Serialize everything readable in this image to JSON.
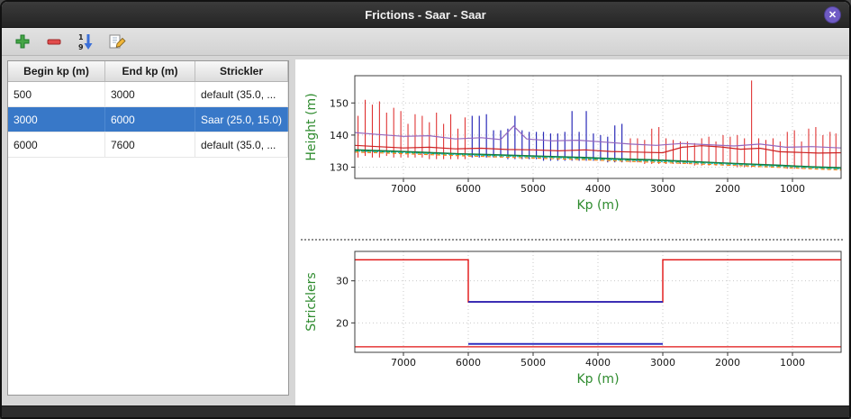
{
  "window": {
    "title": "Frictions - Saar - Saar",
    "close_glyph": "✕"
  },
  "toolbar": {
    "sort_top": "1",
    "sort_bottom": "9"
  },
  "table": {
    "columns": [
      "Begin kp (m)",
      "End kp (m)",
      "Strickler"
    ],
    "rows": [
      {
        "begin": "500",
        "end": "3000",
        "strickler": "default (35.0, ...",
        "selected": false
      },
      {
        "begin": "3000",
        "end": "6000",
        "strickler": "Saar (25.0, 15.0)",
        "selected": true
      },
      {
        "begin": "6000",
        "end": "7600",
        "strickler": "default (35.0, ...",
        "selected": false
      }
    ]
  },
  "chart_data": [
    {
      "type": "line",
      "title": "",
      "xlabel": "Kp (m)",
      "ylabel": "Height (m)",
      "xlim": [
        7750,
        250
      ],
      "ylim": [
        126.5,
        158.5
      ],
      "xticks": [
        7000,
        6000,
        5000,
        4000,
        3000,
        2000,
        1000
      ],
      "yticks": [
        130,
        140,
        150
      ],
      "x_reversed": true,
      "grid": "dotted",
      "axis_label_color": "#2e8b2e",
      "series": [
        {
          "name": "cross-sections-default",
          "type": "vlines",
          "color": "#dd2222",
          "width": 1,
          "data": [
            [
              7700,
              133,
              146
            ],
            [
              7590,
              133.5,
              151
            ],
            [
              7480,
              133,
              149.5
            ],
            [
              7370,
              133,
              150.5
            ],
            [
              7260,
              133.5,
              147
            ],
            [
              7150,
              133,
              148.5
            ],
            [
              7040,
              133,
              147.5
            ],
            [
              6930,
              133,
              143.5
            ],
            [
              6820,
              133,
              146.5
            ],
            [
              6710,
              133,
              146
            ],
            [
              6600,
              132.5,
              144
            ],
            [
              6490,
              132.5,
              147
            ],
            [
              6380,
              132.5,
              143.5
            ],
            [
              6270,
              132.5,
              146.5
            ],
            [
              6160,
              132.5,
              142
            ],
            [
              6050,
              132.5,
              145.5
            ],
            [
              3500,
              131.5,
              139
            ],
            [
              3390,
              131.5,
              139
            ],
            [
              3280,
              131,
              138.5
            ],
            [
              3170,
              131,
              142
            ],
            [
              3060,
              131,
              142.5
            ],
            [
              2950,
              131,
              139
            ],
            [
              2840,
              131,
              138.5
            ],
            [
              2730,
              131,
              138
            ],
            [
              2620,
              131,
              138
            ],
            [
              2510,
              130.5,
              137.5
            ],
            [
              2400,
              130.5,
              139
            ],
            [
              2290,
              130.5,
              139.5
            ],
            [
              2180,
              130.5,
              138
            ],
            [
              2070,
              130.5,
              140
            ],
            [
              1960,
              130.5,
              139.5
            ],
            [
              1850,
              130,
              140
            ],
            [
              1740,
              130,
              139
            ],
            [
              1630,
              130,
              157
            ],
            [
              1520,
              130,
              139
            ],
            [
              1410,
              130,
              138.5
            ],
            [
              1300,
              130,
              139
            ],
            [
              1190,
              130,
              138
            ],
            [
              1080,
              129.5,
              141
            ],
            [
              970,
              129.5,
              141.5
            ],
            [
              860,
              129.5,
              138
            ],
            [
              750,
              129.5,
              142
            ],
            [
              640,
              129.5,
              142.5
            ],
            [
              530,
              129.5,
              140
            ],
            [
              420,
              129.5,
              141
            ],
            [
              330,
              129.5,
              140.5
            ]
          ]
        },
        {
          "name": "cross-sections-selected",
          "type": "vlines",
          "color": "#2a2ab8",
          "width": 1.2,
          "data": [
            [
              5940,
              133,
              146
            ],
            [
              5830,
              133,
              146
            ],
            [
              5720,
              133,
              146.5
            ],
            [
              5610,
              133,
              141.5
            ],
            [
              5500,
              133,
              141.5
            ],
            [
              5390,
              132.5,
              142
            ],
            [
              5280,
              132.5,
              146
            ],
            [
              5170,
              132.5,
              141.5
            ],
            [
              5060,
              132.5,
              141
            ],
            [
              4950,
              132.5,
              141
            ],
            [
              4840,
              132,
              141
            ],
            [
              4730,
              132,
              140.5
            ],
            [
              4620,
              132,
              140.5
            ],
            [
              4510,
              132,
              141
            ],
            [
              4400,
              132,
              147.5
            ],
            [
              4290,
              132,
              141
            ],
            [
              4180,
              132,
              147.5
            ],
            [
              4070,
              132,
              140.5
            ],
            [
              3960,
              132,
              140
            ],
            [
              3850,
              131.5,
              139.5
            ],
            [
              3740,
              131.5,
              143
            ],
            [
              3630,
              131.5,
              143.5
            ]
          ]
        },
        {
          "name": "upper-envelope-purple",
          "type": "line",
          "color": "#9467bd",
          "width": 1.2,
          "data": [
            [
              7750,
              140.8
            ],
            [
              7400,
              140.2
            ],
            [
              7000,
              139.6
            ],
            [
              6600,
              139.8
            ],
            [
              6200,
              138.8
            ],
            [
              5800,
              139.2
            ],
            [
              5500,
              138.6
            ],
            [
              5300,
              142.8
            ],
            [
              5100,
              138.8
            ],
            [
              4700,
              138.2
            ],
            [
              4300,
              138.4
            ],
            [
              3900,
              137.8
            ],
            [
              3500,
              137.2
            ],
            [
              3100,
              136.8
            ],
            [
              2700,
              137.4
            ],
            [
              2300,
              137.0
            ],
            [
              1900,
              136.6
            ],
            [
              1500,
              137.2
            ],
            [
              1100,
              136.2
            ],
            [
              700,
              136.4
            ],
            [
              250,
              136.0
            ]
          ]
        },
        {
          "name": "water-level-red",
          "type": "line",
          "color": "#cc2222",
          "width": 1.2,
          "data": [
            [
              7750,
              136.8
            ],
            [
              7400,
              136.4
            ],
            [
              7000,
              136.0
            ],
            [
              6600,
              136.2
            ],
            [
              6200,
              135.7
            ],
            [
              5800,
              135.9
            ],
            [
              5400,
              135.5
            ],
            [
              5000,
              135.4
            ],
            [
              4600,
              135.1
            ],
            [
              4200,
              135.4
            ],
            [
              3800,
              134.9
            ],
            [
              3400,
              134.7
            ],
            [
              3000,
              134.5
            ],
            [
              2700,
              136.2
            ],
            [
              2400,
              136.7
            ],
            [
              2100,
              136.3
            ],
            [
              1800,
              135.6
            ],
            [
              1500,
              135.9
            ],
            [
              1200,
              134.8
            ],
            [
              900,
              134.6
            ],
            [
              600,
              134.4
            ],
            [
              250,
              134.5
            ]
          ]
        },
        {
          "name": "bed-line-darkgreen",
          "type": "line",
          "color": "#117a45",
          "width": 1.6,
          "data": [
            [
              7750,
              135.4
            ],
            [
              7200,
              135.0
            ],
            [
              6700,
              134.6
            ],
            [
              6200,
              134.2
            ],
            [
              5700,
              133.9
            ],
            [
              5200,
              133.6
            ],
            [
              4700,
              133.3
            ],
            [
              4200,
              133.0
            ],
            [
              3700,
              132.6
            ],
            [
              3200,
              132.3
            ],
            [
              2700,
              131.9
            ],
            [
              2200,
              131.4
            ],
            [
              1700,
              131.0
            ],
            [
              1200,
              130.6
            ],
            [
              700,
              130.1
            ],
            [
              250,
              129.8
            ]
          ]
        },
        {
          "name": "bed-line-green-dashed",
          "type": "line",
          "color": "#2ca02c",
          "width": 1.1,
          "dash": "4 3",
          "data": [
            [
              7750,
              135.1
            ],
            [
              7000,
              134.6
            ],
            [
              6200,
              134.0
            ],
            [
              5400,
              133.5
            ],
            [
              4600,
              133.0
            ],
            [
              3800,
              132.4
            ],
            [
              3000,
              131.9
            ],
            [
              2200,
              131.2
            ],
            [
              1400,
              130.5
            ],
            [
              600,
              129.8
            ],
            [
              250,
              129.5
            ]
          ]
        },
        {
          "name": "bed-line-cyan",
          "type": "line",
          "color": "#17becf",
          "width": 1.1,
          "dash": "2 2",
          "data": [
            [
              7750,
              135.0
            ],
            [
              7000,
              134.5
            ],
            [
              6200,
              133.9
            ],
            [
              5400,
              133.4
            ],
            [
              4600,
              132.9
            ],
            [
              3800,
              132.3
            ],
            [
              3000,
              131.7
            ],
            [
              2200,
              131.1
            ],
            [
              1400,
              130.4
            ],
            [
              600,
              129.7
            ],
            [
              250,
              129.4
            ]
          ]
        },
        {
          "name": "bed-line-orange-dashed",
          "type": "line",
          "color": "#ff7f0e",
          "width": 1.1,
          "dash": "4 3",
          "data": [
            [
              7750,
              134.7
            ],
            [
              7000,
              134.2
            ],
            [
              6200,
              133.6
            ],
            [
              5400,
              133.1
            ],
            [
              4600,
              132.6
            ],
            [
              3800,
              132.0
            ],
            [
              3000,
              131.4
            ],
            [
              2200,
              130.8
            ],
            [
              1400,
              130.1
            ],
            [
              600,
              129.4
            ],
            [
              250,
              129.1
            ]
          ]
        }
      ]
    },
    {
      "type": "step",
      "title": "",
      "xlabel": "Kp (m)",
      "ylabel": "Stricklers",
      "xlim": [
        7750,
        250
      ],
      "ylim": [
        13,
        37
      ],
      "xticks": [
        7000,
        6000,
        5000,
        4000,
        3000,
        2000,
        1000
      ],
      "yticks": [
        20,
        30
      ],
      "x_reversed": true,
      "grid": "dotted",
      "axis_label_color": "#2e8b2e",
      "series": [
        {
          "name": "default-minor-bed-strickler",
          "type": "line",
          "color": "#e01010",
          "width": 1.4,
          "data": [
            [
              7750,
              35
            ],
            [
              6000,
              35
            ],
            [
              6000,
              25
            ],
            [
              3000,
              25
            ],
            [
              3000,
              35
            ],
            [
              250,
              35
            ]
          ]
        },
        {
          "name": "default-major-bed-strickler",
          "type": "line",
          "color": "#e01010",
          "width": 1.2,
          "data": [
            [
              7750,
              14.3
            ],
            [
              250,
              14.3
            ]
          ]
        },
        {
          "name": "selected-minor-bed-strickler",
          "type": "line",
          "color": "#2222bb",
          "width": 1.8,
          "data": [
            [
              6000,
              25
            ],
            [
              3000,
              25
            ]
          ]
        },
        {
          "name": "selected-major-bed-strickler",
          "type": "line",
          "color": "#2222bb",
          "width": 1.8,
          "data": [
            [
              6000,
              15
            ],
            [
              3000,
              15
            ]
          ]
        }
      ]
    }
  ]
}
